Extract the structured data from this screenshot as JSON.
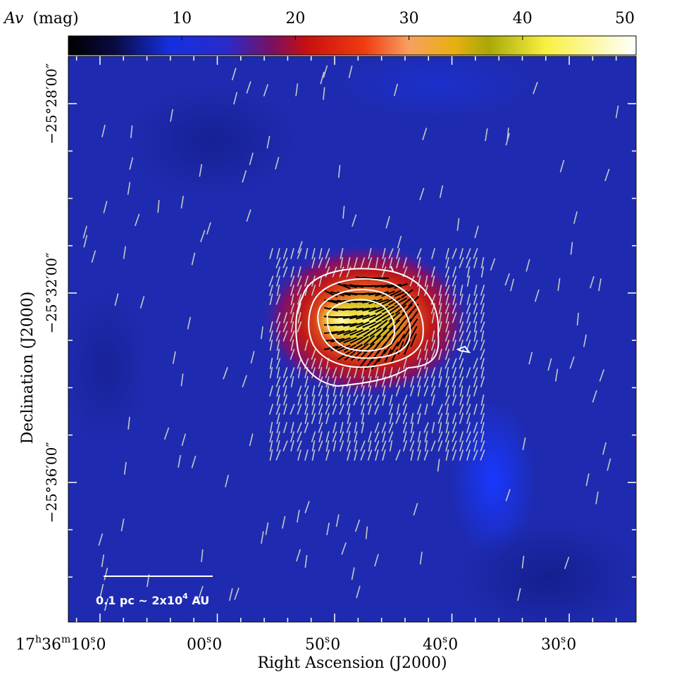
{
  "chart_data": {
    "type": "heatmap",
    "colorbar": {
      "label_italic": "Av",
      "label_unit": "(mag)",
      "vmin": 0,
      "vmax": 50,
      "ticks": [
        10,
        20,
        30,
        40,
        50
      ],
      "tick_labels": [
        "10",
        "20",
        "30",
        "40",
        "50"
      ]
    },
    "xaxis": {
      "label": "Right Ascension (J2000)",
      "range_sec": [
        72.7,
        24.3
      ],
      "ticks": [
        {
          "value": 70,
          "h": "17",
          "m": "36",
          "s": "10",
          "frac": "0"
        },
        {
          "value": 60,
          "s": "00",
          "frac": "0"
        },
        {
          "value": 50,
          "s": "50",
          "frac": "0"
        },
        {
          "value": 40,
          "s": "40",
          "frac": "0"
        },
        {
          "value": 30,
          "s": "30",
          "frac": "0"
        }
      ]
    },
    "yaxis": {
      "label": "Declination (J2000)",
      "range_arcmin": [
        -38.95,
        -27.0
      ],
      "ticks": [
        {
          "value": -28,
          "label": "−25°28′00″"
        },
        {
          "value": -32,
          "label": "−25°32′00″"
        },
        {
          "value": -36,
          "label": "−25°36′00″"
        }
      ]
    },
    "core": {
      "ra_sec": 50.5,
      "dec_arcmin": -32.97,
      "peak_av": 40
    },
    "contours": 4,
    "scale_bar": {
      "label_main": "0.1 pc ~ 2x10",
      "label_exp": "4",
      "label_tail": " AU"
    }
  },
  "colors": {
    "background": "#1e2bb0",
    "vectors_outer": "#c8c8c8",
    "vectors_inner": "#000000",
    "contours": "#ffffff"
  }
}
